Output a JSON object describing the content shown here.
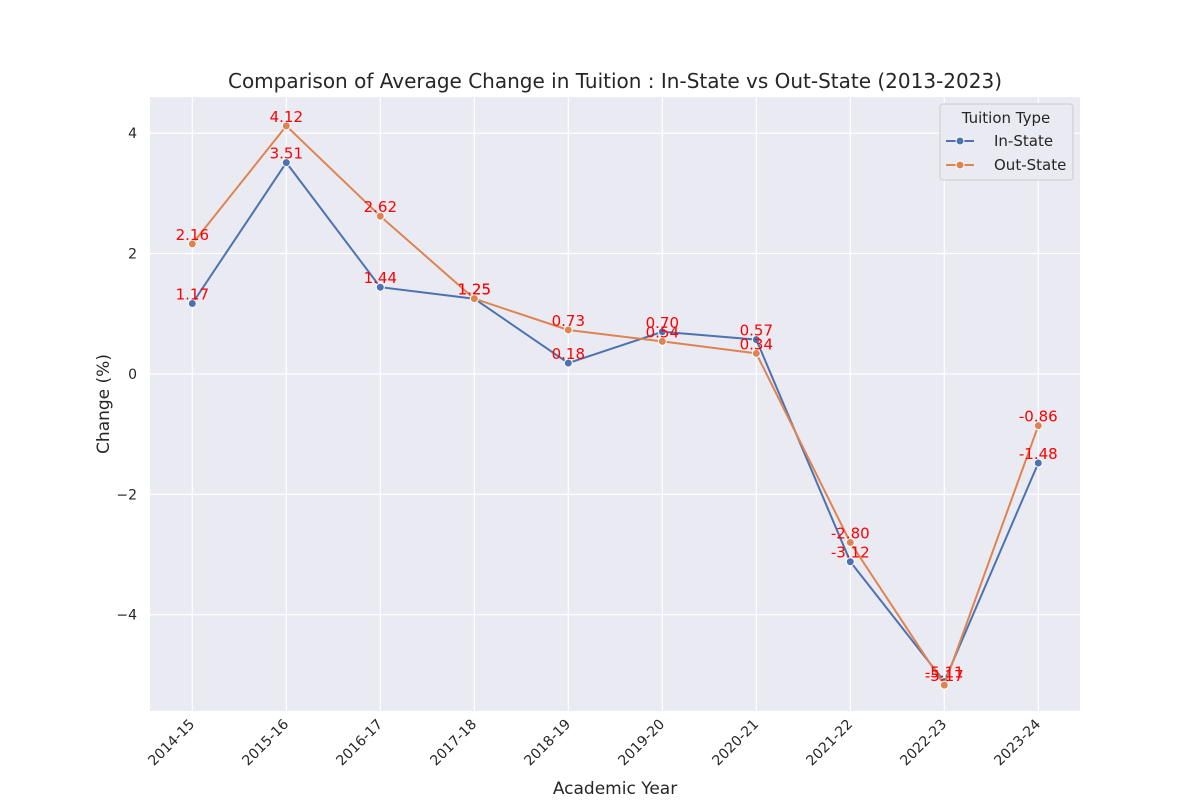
{
  "chart_data": {
    "type": "line",
    "title": "Comparison of Average Change in Tuition : In-State vs Out-State (2013-2023)",
    "xlabel": "Academic Year",
    "ylabel": "Change (%)",
    "categories": [
      "2014-15",
      "2015-16",
      "2016-17",
      "2017-18",
      "2018-19",
      "2019-20",
      "2020-21",
      "2021-22",
      "2022-23",
      "2023-24"
    ],
    "ylim": [
      -5.6,
      4.6
    ],
    "yticks": [
      -4,
      -2,
      0,
      2,
      4
    ],
    "ytick_labels": [
      "−4",
      "−2",
      "0",
      "2",
      "4"
    ],
    "grid": true,
    "legend": {
      "title": "Tuition Type",
      "placement": "top-right"
    },
    "series": [
      {
        "name": "In-State",
        "color": "#4c72b0",
        "values": [
          1.17,
          3.51,
          1.44,
          1.25,
          0.18,
          0.7,
          0.57,
          -3.12,
          -5.11,
          -1.48
        ],
        "labels": [
          "1.17",
          "3.51",
          "1.44",
          "1.25",
          "0.18",
          "0.70",
          "0.57",
          "-3.12",
          "-5.11",
          "-1.48"
        ]
      },
      {
        "name": "Out-State",
        "color": "#dd8452",
        "values": [
          2.16,
          4.12,
          2.62,
          1.25,
          0.73,
          0.54,
          0.34,
          -2.8,
          -5.17,
          -0.86
        ],
        "labels": [
          "2.16",
          "4.12",
          "2.62",
          "1.25",
          "0.73",
          "0.54",
          "0.34",
          "-2.80",
          "-5.17",
          "-0.86"
        ]
      }
    ],
    "label_color": "#ff0000",
    "plot_background": "#eaeaf2",
    "grid_color": "#ffffff"
  }
}
